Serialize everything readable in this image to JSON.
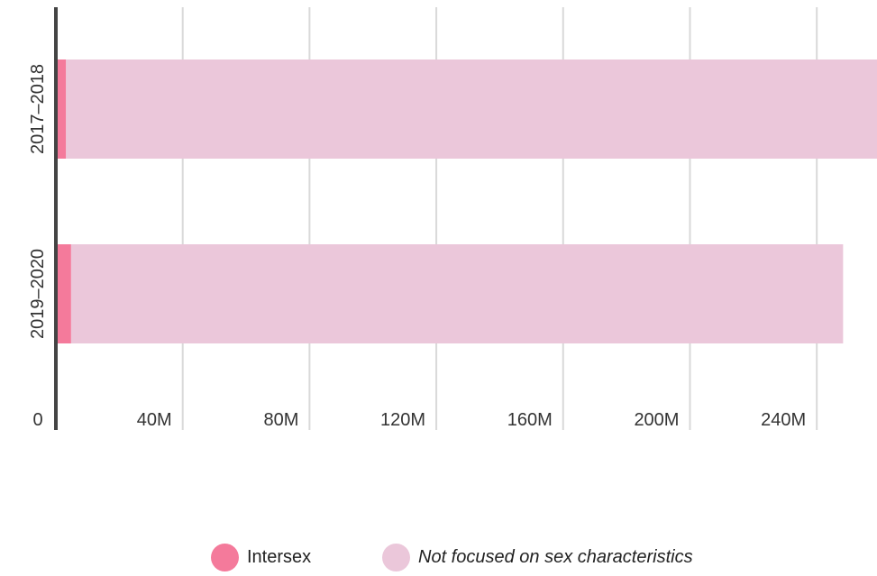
{
  "chart_data": {
    "type": "bar",
    "orientation": "horizontal",
    "stacked": true,
    "categories": [
      "2017–2018",
      "2019–2020"
    ],
    "series": [
      {
        "name": "Intersex",
        "values": [
          3.2,
          4.8
        ],
        "color": "#f47a9b"
      },
      {
        "name": "Not focused on sex characteristics",
        "values": [
          255.8,
          243.5
        ],
        "color": "#ebc7da"
      }
    ],
    "xlim": [
      0,
      259
    ],
    "xticks": [
      0,
      40,
      80,
      120,
      160,
      200,
      240
    ],
    "xtick_labels": [
      "0",
      "40M",
      "80M",
      "120M",
      "160M",
      "200M",
      "240M"
    ],
    "grid": true,
    "legend_position": "bottom"
  },
  "legend": {
    "items": [
      {
        "label": "Intersex",
        "color": "#f47a9b",
        "italic": false
      },
      {
        "label": "Not focused on sex characteristics",
        "color": "#ebc7da",
        "italic": true
      }
    ]
  }
}
